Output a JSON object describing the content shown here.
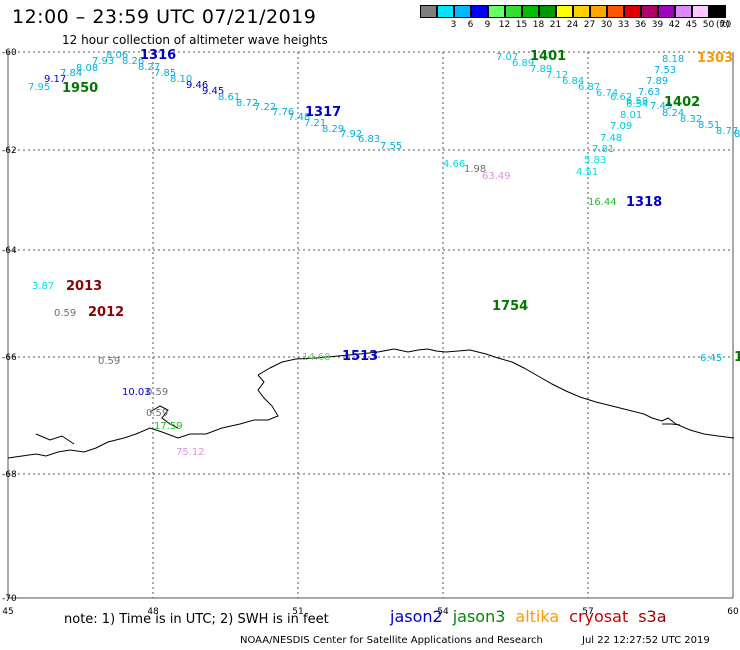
{
  "header": {
    "title": "12:00 – 23:59 UTC 07/21/2019",
    "subtitle": "12 hour collection of altimeter wave heights"
  },
  "colorbar": {
    "unit": "(ft)",
    "bins": [
      {
        "label": "",
        "color": "#7f7f7f"
      },
      {
        "label": "3",
        "color": "#00e5ff"
      },
      {
        "label": "6",
        "color": "#00b8ff"
      },
      {
        "label": "9",
        "color": "#0000ff"
      },
      {
        "label": "12",
        "color": "#66ff66"
      },
      {
        "label": "15",
        "color": "#33dd33"
      },
      {
        "label": "18",
        "color": "#00bb00"
      },
      {
        "label": "21",
        "color": "#009900"
      },
      {
        "label": "24",
        "color": "#ffff00"
      },
      {
        "label": "27",
        "color": "#ffd000"
      },
      {
        "label": "30",
        "color": "#ffa500"
      },
      {
        "label": "33",
        "color": "#ff5500"
      },
      {
        "label": "36",
        "color": "#e00000"
      },
      {
        "label": "39",
        "color": "#b0006a"
      },
      {
        "label": "42",
        "color": "#a000c0"
      },
      {
        "label": "45",
        "color": "#dd88ff"
      },
      {
        "label": "50",
        "color": "#ffc8ff"
      },
      {
        "label": "70",
        "color": "#000000"
      }
    ]
  },
  "map": {
    "lon_labels": [
      "45",
      "48",
      "51",
      "54",
      "57",
      "60"
    ],
    "lat_labels": [
      "-60",
      "-62",
      "-64",
      "-66",
      "-68",
      "-70"
    ]
  },
  "observations": [
    {
      "text": "7.95",
      "color": "#00c0e0"
    },
    {
      "text": "9.17",
      "color": "#0000cc"
    },
    {
      "text": "7.84",
      "color": "#00b0e0"
    },
    {
      "text": "8.08",
      "color": "#00b0e0"
    },
    {
      "text": "7.93",
      "color": "#00b0e0"
    },
    {
      "text": "8.06",
      "color": "#00b0e0"
    },
    {
      "text": "8.26",
      "color": "#00b0e0"
    },
    {
      "text": "8.27",
      "color": "#00b0e0"
    },
    {
      "text": "7.85",
      "color": "#00b0e0"
    },
    {
      "text": "8.10",
      "color": "#00b0e0"
    },
    {
      "text": "9.46",
      "color": "#0000cc"
    },
    {
      "text": "9.45",
      "color": "#0000cc"
    },
    {
      "text": "8.61",
      "color": "#00b0e0"
    },
    {
      "text": "8.72",
      "color": "#00b0e0"
    },
    {
      "text": "7.22",
      "color": "#00b0e0"
    },
    {
      "text": "7.76",
      "color": "#00b0e0"
    },
    {
      "text": "7.48",
      "color": "#00b0e0"
    },
    {
      "text": "7.21",
      "color": "#00b0e0"
    },
    {
      "text": "8.29",
      "color": "#00b0e0"
    },
    {
      "text": "7.92",
      "color": "#00b0e0"
    },
    {
      "text": "6.83",
      "color": "#00b0e0"
    },
    {
      "text": "7.55",
      "color": "#00b0e0"
    },
    {
      "text": "7.07",
      "color": "#00c8e0"
    },
    {
      "text": "6.89",
      "color": "#00c8e0"
    },
    {
      "text": "7.89",
      "color": "#00c8e0"
    },
    {
      "text": "7.12",
      "color": "#00c8e0"
    },
    {
      "text": "6.84",
      "color": "#00c8e0"
    },
    {
      "text": "6.87",
      "color": "#00c8e0"
    },
    {
      "text": "6.74",
      "color": "#00c8e0"
    },
    {
      "text": "6.62",
      "color": "#00c8e0"
    },
    {
      "text": "6.58",
      "color": "#00c8e0"
    },
    {
      "text": "6.54",
      "color": "#00c8e0"
    },
    {
      "text": "8.01",
      "color": "#00c8e0"
    },
    {
      "text": "7.09",
      "color": "#00c8e0"
    },
    {
      "text": "7.48",
      "color": "#00c8e0"
    },
    {
      "text": "7.81",
      "color": "#00c8e0"
    },
    {
      "text": "5.83",
      "color": "#00e0e8"
    },
    {
      "text": "4.51",
      "color": "#00e0e8"
    },
    {
      "text": "8.18",
      "color": "#00b0e0"
    },
    {
      "text": "7.53",
      "color": "#00b0e0"
    },
    {
      "text": "7.89",
      "color": "#00b0e0"
    },
    {
      "text": "7.63",
      "color": "#00b0e0"
    },
    {
      "text": "7.49",
      "color": "#00b0e0"
    },
    {
      "text": "8.24",
      "color": "#00b0e0"
    },
    {
      "text": "8.32",
      "color": "#00b0e0"
    },
    {
      "text": "8.51",
      "color": "#00b0e0"
    },
    {
      "text": "8.77",
      "color": "#00b0e0"
    },
    {
      "text": "8.",
      "color": "#00b0e0"
    },
    {
      "text": "4.66",
      "color": "#00e0e8"
    },
    {
      "text": "1.98",
      "color": "#707070"
    },
    {
      "text": "63.49",
      "color": "#e090e0"
    },
    {
      "text": "16.44",
      "color": "#22bb22"
    },
    {
      "text": "3.87",
      "color": "#00e0e8"
    },
    {
      "text": "0.59",
      "color": "#707070"
    },
    {
      "text": "0.59",
      "color": "#707070"
    },
    {
      "text": "14.68",
      "color": "#55dd55"
    },
    {
      "text": "0.59",
      "color": "#707070"
    },
    {
      "text": "10.03",
      "color": "#0000cc"
    },
    {
      "text": "0.59",
      "color": "#707070"
    },
    {
      "text": "17.59",
      "color": "#22bb22"
    },
    {
      "text": "75.12",
      "color": "#e090e0"
    },
    {
      "text": "6.45",
      "color": "#00b0e0"
    }
  ],
  "pass_times": [
    {
      "text": "1316",
      "color": "#0000cc"
    },
    {
      "text": "1950",
      "color": "#007700"
    },
    {
      "text": "1317",
      "color": "#0000cc"
    },
    {
      "text": "1401",
      "color": "#007700"
    },
    {
      "text": "1303",
      "color": "#ff9900"
    },
    {
      "text": "1402",
      "color": "#007700"
    },
    {
      "text": "1318",
      "color": "#0000cc"
    },
    {
      "text": "2013",
      "color": "#8b0000"
    },
    {
      "text": "2012",
      "color": "#8b0000"
    },
    {
      "text": "1754",
      "color": "#007700"
    },
    {
      "text": "1513",
      "color": "#0000cc"
    },
    {
      "text": "1",
      "color": "#007700"
    }
  ],
  "footer": {
    "note": "note:  1) Time is in UTC; 2) SWH is in feet",
    "legend": [
      {
        "label": "jason2",
        "color": "#0000cc"
      },
      {
        "label": "jason3",
        "color": "#008800"
      },
      {
        "label": "altika",
        "color": "#ff9900"
      },
      {
        "label": "cryosat",
        "color": "#cc0000"
      },
      {
        "label": "s3a",
        "color": "#990000"
      }
    ],
    "credit": "NOAA/NESDIS Center for Satellite Applications and Research",
    "timestamp": "Jul 22 12:27:52 UTC 2019"
  }
}
